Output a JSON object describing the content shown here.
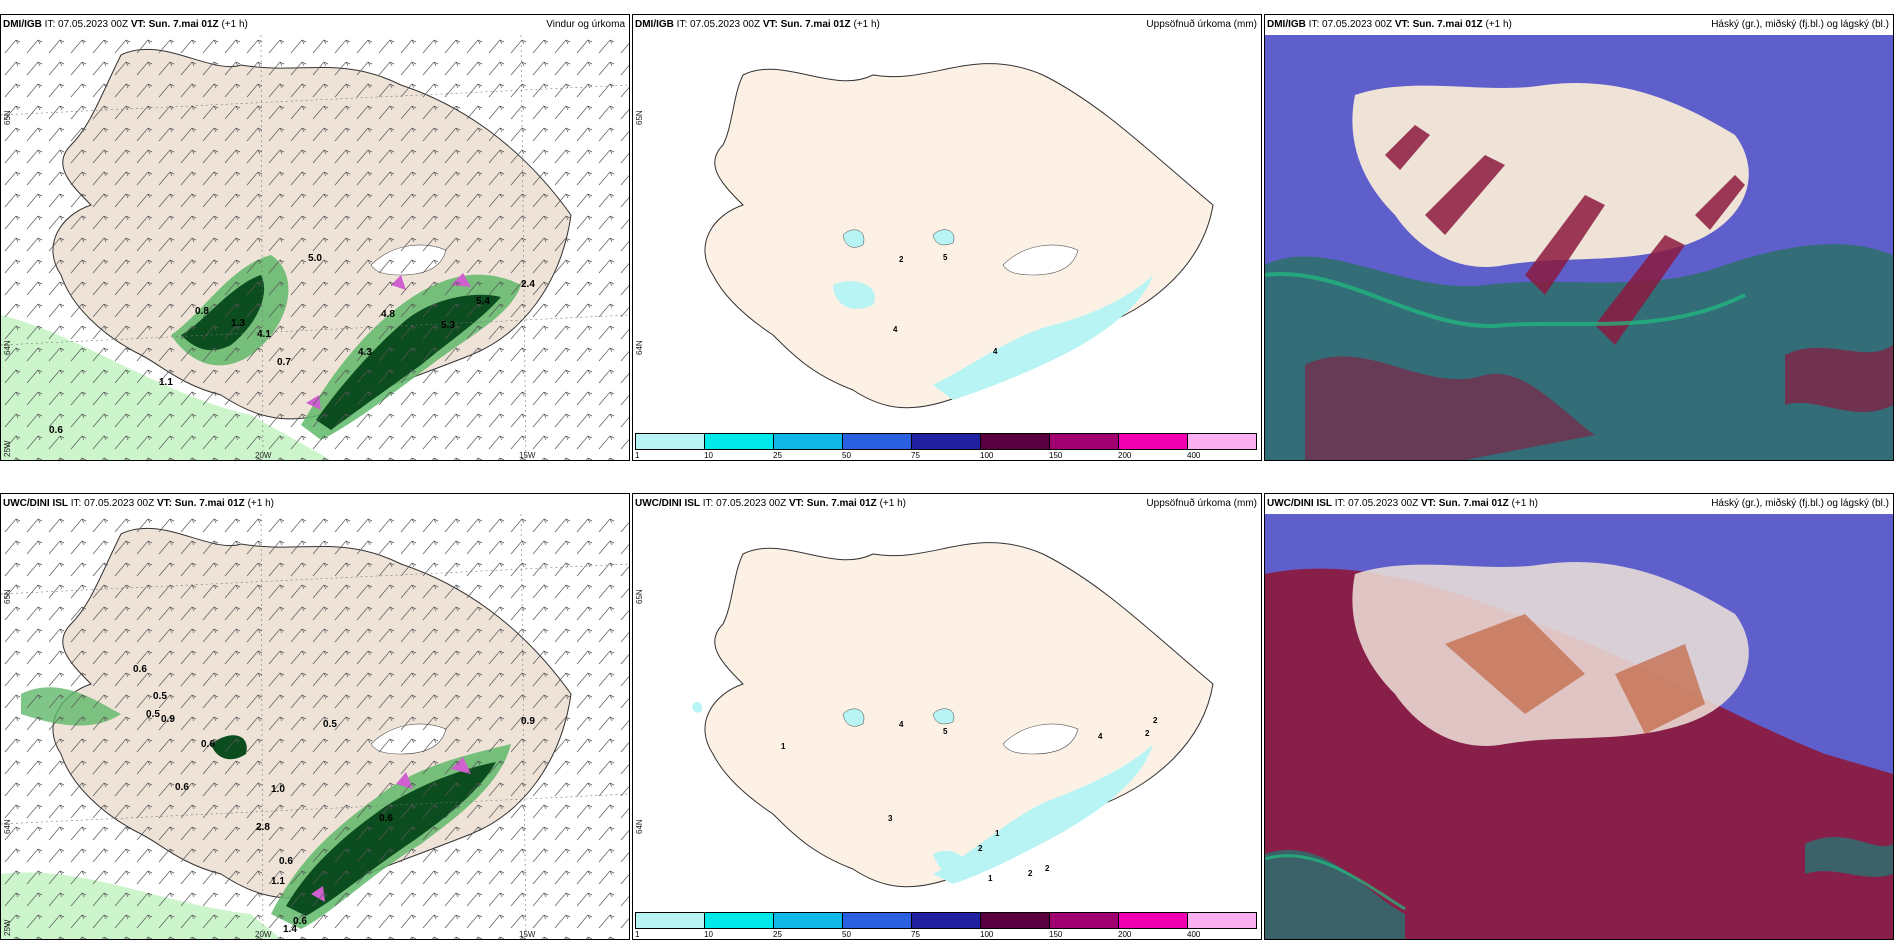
{
  "colors": {
    "land": "#efe3d8",
    "land_accum": "#fdf1e6",
    "precip_light": "#bff2bf",
    "precip_mid": "#5fb86a",
    "precip_dark": "#0c4d1f",
    "precip_heavy": "#d060d0",
    "accum": "#b8f4f4",
    "cloud_high": "#5f5fcc",
    "cloud_mid": "#8b1a3e",
    "cloud_low": "#2e6f6f"
  },
  "panels": [
    {
      "id": "dmi-wind",
      "model": "DMI/IGB",
      "it_label": "IT:",
      "it_value": "07.05.2023 00Z",
      "vt_label": "VT:",
      "vt_value": "Sun. 7.mai 01Z",
      "offset": "(+1 h)",
      "field": "Vindur og úrkoma",
      "coords": [
        "65N",
        "64N",
        "25W",
        "20W",
        "15W"
      ],
      "values": [
        "5.0",
        "4.8",
        "4.3",
        "4.1",
        "1.3",
        "0.8",
        "0.7",
        "1.1",
        "0.6",
        "5.3",
        "5.4",
        "2.4"
      ]
    },
    {
      "id": "dmi-accum",
      "model": "DMI/IGB",
      "it_label": "IT:",
      "it_value": "07.05.2023 00Z",
      "vt_label": "VT:",
      "vt_value": "Sun. 7.mai 01Z",
      "offset": "(+1 h)",
      "field": "Uppsöfnuð úrkoma (mm)",
      "coords": [
        "65N",
        "64N"
      ],
      "values": [
        "2",
        "5",
        "4",
        "4"
      ]
    },
    {
      "id": "dmi-cloud",
      "model": "DMI/IGB",
      "it_label": "IT:",
      "it_value": "07.05.2023 00Z",
      "vt_label": "VT:",
      "vt_value": "Sun. 7.mai 01Z",
      "offset": "(+1 h)",
      "field": "Háský (gr.), miðský (fj.bl.) og lágský (bl.)"
    },
    {
      "id": "uwc-wind",
      "model": "UWC/DINI ISL",
      "it_label": "IT:",
      "it_value": "07.05.2023 00Z",
      "vt_label": "VT:",
      "vt_value": "Sun. 7.mai 01Z",
      "offset": "(+1 h)",
      "field": "",
      "coords": [
        "65N",
        "64N",
        "25W",
        "20W",
        "15W"
      ],
      "values": [
        "0.6",
        "0.5",
        "0.9",
        "0.6",
        "1.0",
        "0.6",
        "2.8",
        "0.6",
        "0.5",
        "0.6",
        "1.1",
        "0.9",
        "0.6",
        "1.4",
        "0.5"
      ]
    },
    {
      "id": "uwc-accum",
      "model": "UWC/DINI ISL",
      "it_label": "IT:",
      "it_value": "07.05.2023 00Z",
      "vt_label": "VT:",
      "vt_value": "Sun. 7.mai 01Z",
      "offset": "(+1 h)",
      "field": "Uppsöfnuð úrkoma (mm)",
      "coords": [
        "65N",
        "64N"
      ],
      "values": [
        "4",
        "5",
        "3",
        "1",
        "2",
        "2",
        "2",
        "1",
        "1",
        "2",
        "4",
        "2"
      ]
    },
    {
      "id": "uwc-cloud",
      "model": "UWC/DINI ISL",
      "it_label": "IT:",
      "it_value": "07.05.2023 00Z",
      "vt_label": "VT:",
      "vt_value": "Sun. 7.mai 01Z",
      "offset": "(+1 h)",
      "field": "Háský (gr.), miðský (fj.bl.) og lágský (bl.)"
    }
  ],
  "colorbar": {
    "ticks": [
      "1",
      "10",
      "25",
      "50",
      "75",
      "100",
      "150",
      "200",
      "400"
    ],
    "colors": [
      "#b8f4f4",
      "#00e8e8",
      "#10b8e8",
      "#2a60e0",
      "#2020a0",
      "#5a0040",
      "#a00070",
      "#f000b0",
      "#f8b0f0"
    ]
  }
}
